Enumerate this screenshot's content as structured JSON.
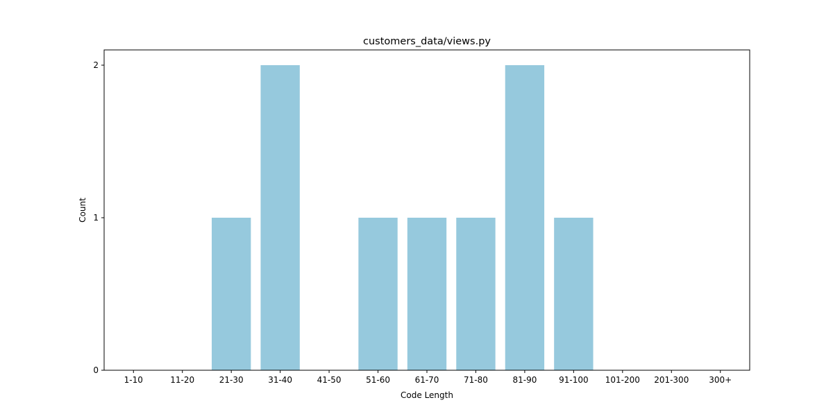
{
  "chart_data": {
    "type": "bar",
    "title": "customers_data/views.py",
    "xlabel": "Code Length",
    "ylabel": "Count",
    "categories": [
      "1-10",
      "11-20",
      "21-30",
      "31-40",
      "41-50",
      "51-60",
      "61-70",
      "71-80",
      "81-90",
      "91-100",
      "101-200",
      "201-300",
      "300+"
    ],
    "values": [
      0,
      0,
      1,
      2,
      0,
      1,
      1,
      1,
      2,
      1,
      0,
      0,
      0
    ],
    "ylim": [
      0,
      2.1
    ],
    "yticks": [
      0,
      1,
      2
    ],
    "bar_color": "#96c9dd",
    "grid": false,
    "legend": "none"
  }
}
